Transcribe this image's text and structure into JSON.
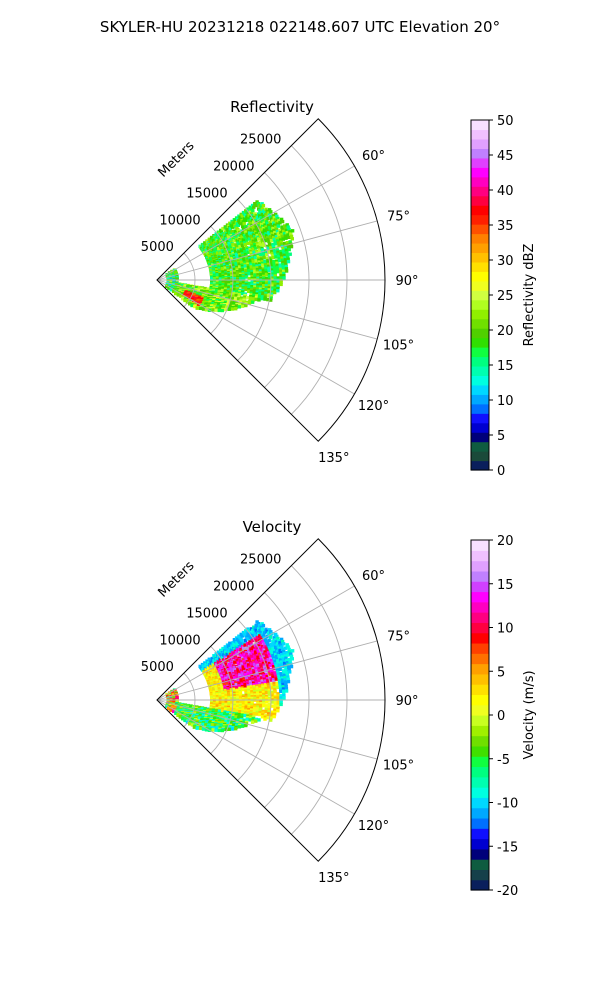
{
  "suptitle": "SKYLER-HU  20231218  022148.607 UTC Elevation 20°",
  "chart_data": [
    {
      "type": "heatmap",
      "subtype": "polar-wedge radar PPI",
      "title": "Reflectivity",
      "radial_label": "Meters",
      "r_ticks": [
        "5000",
        "10000",
        "15000",
        "20000",
        "25000"
      ],
      "theta_ticks": [
        "60°",
        "75°",
        "90°",
        "105°",
        "120°",
        "135°"
      ],
      "theta_range_deg": [
        45,
        135
      ],
      "r_range_m": [
        0,
        30000
      ],
      "grid": true,
      "colorbar": {
        "label": "Reflectivity dBZ",
        "min": 0,
        "max": 50,
        "ticks": [
          "0",
          "5",
          "10",
          "15",
          "20",
          "25",
          "30",
          "35",
          "40",
          "45",
          "50"
        ],
        "colors": [
          "#0a1f5c",
          "#1a4a3a",
          "#0f5c40",
          "#00007a",
          "#0000d0",
          "#1010ff",
          "#0070ff",
          "#00a8ff",
          "#00d8ff",
          "#00ffe0",
          "#00ffb0",
          "#00ff80",
          "#10ff40",
          "#30e000",
          "#50d000",
          "#70e000",
          "#90f000",
          "#b0ff20",
          "#d0ff40",
          "#f0ff20",
          "#ffff00",
          "#ffe000",
          "#ffc000",
          "#ffa000",
          "#ff8000",
          "#ff5000",
          "#ff2000",
          "#ff0000",
          "#ff0040",
          "#ff0080",
          "#ff00c0",
          "#ff00ff",
          "#e040ff",
          "#c080ff",
          "#e0a0ff",
          "#f0c0ff",
          "#f8e0ff"
        ]
      },
      "echo_values_dbz": {
        "main_body": 18,
        "inner_band": 20,
        "core": 36
      }
    },
    {
      "type": "heatmap",
      "subtype": "polar-wedge radar PPI",
      "title": "Velocity",
      "radial_label": "Meters",
      "r_ticks": [
        "5000",
        "10000",
        "15000",
        "20000",
        "25000"
      ],
      "theta_ticks": [
        "60°",
        "75°",
        "90°",
        "105°",
        "120°",
        "135°"
      ],
      "theta_range_deg": [
        45,
        135
      ],
      "r_range_m": [
        0,
        30000
      ],
      "grid": true,
      "colorbar": {
        "label": "Velocity (m/s)",
        "min": -20,
        "max": 20,
        "ticks": [
          "-20",
          "-15",
          "-10",
          "-5",
          "0",
          "5",
          "10",
          "15",
          "20"
        ],
        "colors": [
          "#0a1f5c",
          "#15404a",
          "#0f5c40",
          "#00007a",
          "#0000d0",
          "#1010ff",
          "#0070ff",
          "#00a8ff",
          "#00d8ff",
          "#00ffe0",
          "#00ffb0",
          "#00ff80",
          "#10ff40",
          "#40e000",
          "#70e000",
          "#a0f000",
          "#c8ff20",
          "#f0ff20",
          "#ffff00",
          "#ffe000",
          "#ffc000",
          "#ffa000",
          "#ff7000",
          "#ff4000",
          "#ff0000",
          "#ff0040",
          "#ff0080",
          "#ff00c0",
          "#ff00ff",
          "#d040ff",
          "#c080ff",
          "#e0a0ff",
          "#f0c0ff",
          "#f8e0ff"
        ]
      },
      "echo_values_ms": {
        "far_edge": -12,
        "mid_north": 10,
        "center": 0,
        "south": -8
      }
    }
  ]
}
